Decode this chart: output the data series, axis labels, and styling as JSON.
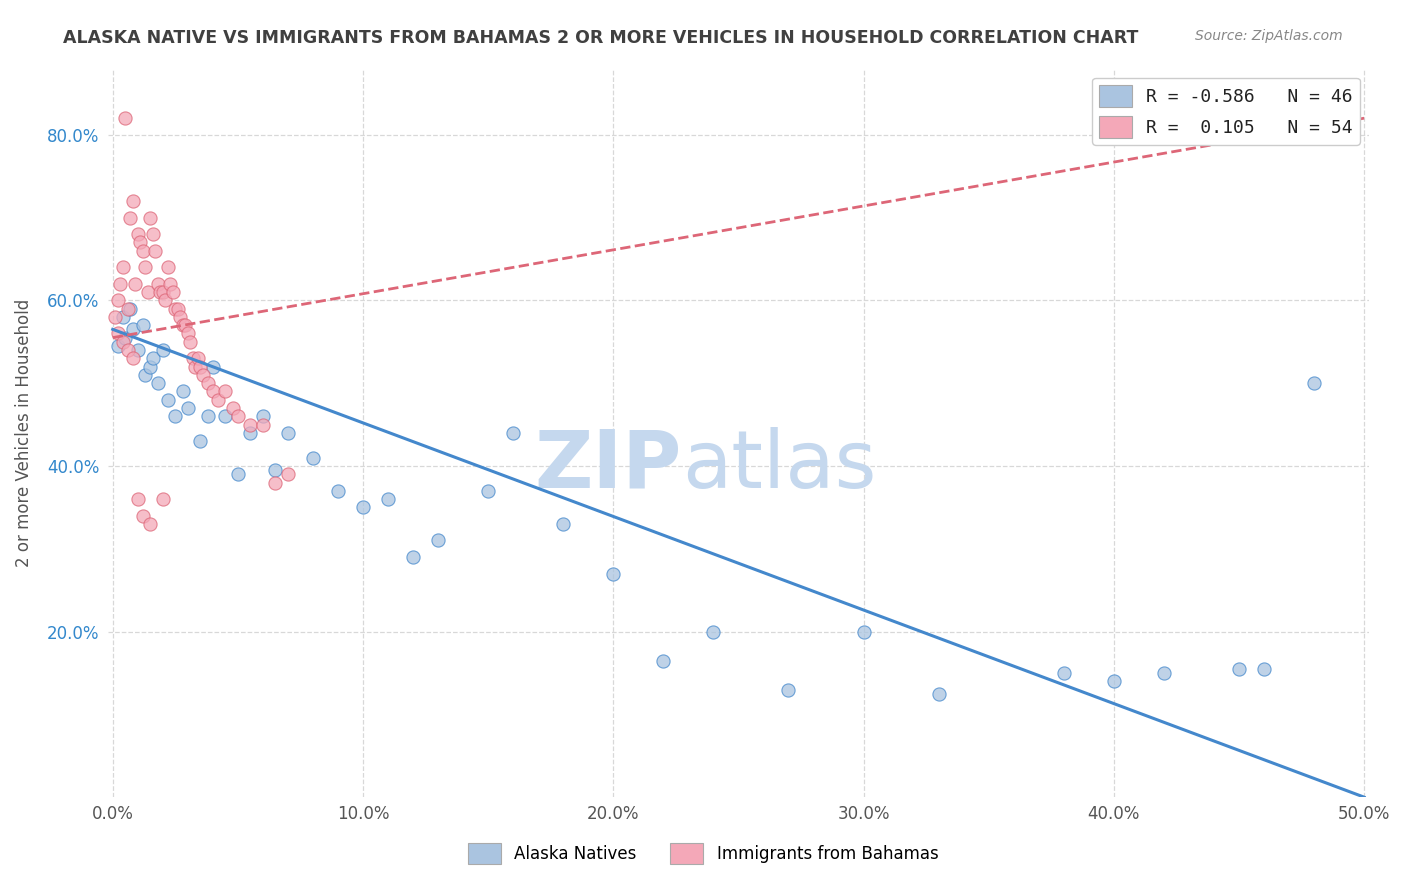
{
  "title": "ALASKA NATIVE VS IMMIGRANTS FROM BAHAMAS 2 OR MORE VEHICLES IN HOUSEHOLD CORRELATION CHART",
  "source": "Source: ZipAtlas.com",
  "xlabel": "",
  "ylabel": "2 or more Vehicles in Household",
  "xlim": [
    -0.002,
    0.502
  ],
  "ylim": [
    0.0,
    0.88
  ],
  "xtick_labels": [
    "0.0%",
    "10.0%",
    "20.0%",
    "30.0%",
    "40.0%",
    "50.0%"
  ],
  "xtick_values": [
    0.0,
    0.1,
    0.2,
    0.3,
    0.4,
    0.5
  ],
  "ytick_labels": [
    "20.0%",
    "40.0%",
    "60.0%",
    "80.0%"
  ],
  "ytick_values": [
    0.2,
    0.4,
    0.6,
    0.8
  ],
  "background_color": "#ffffff",
  "plot_bg_color": "#ffffff",
  "grid_color": "#d8d8d8",
  "title_color": "#404040",
  "source_color": "#888888",
  "r1": -0.586,
  "n1": 46,
  "r2": 0.105,
  "n2": 54,
  "color1": "#aac4e0",
  "color2": "#f4a8b8",
  "trendline1_color": "#4488cc",
  "trendline2_color": "#dd6677",
  "watermark_zip": "ZIP",
  "watermark_atlas": "atlas",
  "watermark_color": "#c5d8ee",
  "scatter1_x": [
    0.002,
    0.004,
    0.005,
    0.007,
    0.008,
    0.01,
    0.012,
    0.013,
    0.015,
    0.016,
    0.018,
    0.02,
    0.022,
    0.025,
    0.028,
    0.03,
    0.035,
    0.038,
    0.04,
    0.045,
    0.05,
    0.055,
    0.06,
    0.065,
    0.07,
    0.08,
    0.09,
    0.1,
    0.11,
    0.12,
    0.13,
    0.15,
    0.16,
    0.18,
    0.2,
    0.22,
    0.24,
    0.27,
    0.3,
    0.33,
    0.38,
    0.4,
    0.42,
    0.45,
    0.46,
    0.48
  ],
  "scatter1_y": [
    0.545,
    0.58,
    0.555,
    0.59,
    0.565,
    0.54,
    0.57,
    0.51,
    0.52,
    0.53,
    0.5,
    0.54,
    0.48,
    0.46,
    0.49,
    0.47,
    0.43,
    0.46,
    0.52,
    0.46,
    0.39,
    0.44,
    0.46,
    0.395,
    0.44,
    0.41,
    0.37,
    0.35,
    0.36,
    0.29,
    0.31,
    0.37,
    0.44,
    0.33,
    0.27,
    0.165,
    0.2,
    0.13,
    0.2,
    0.125,
    0.15,
    0.14,
    0.15,
    0.155,
    0.155,
    0.5
  ],
  "scatter2_x": [
    0.001,
    0.002,
    0.003,
    0.004,
    0.005,
    0.006,
    0.007,
    0.008,
    0.009,
    0.01,
    0.011,
    0.012,
    0.013,
    0.014,
    0.015,
    0.016,
    0.017,
    0.018,
    0.019,
    0.02,
    0.021,
    0.022,
    0.023,
    0.024,
    0.025,
    0.026,
    0.027,
    0.028,
    0.029,
    0.03,
    0.031,
    0.032,
    0.033,
    0.034,
    0.035,
    0.036,
    0.038,
    0.04,
    0.042,
    0.045,
    0.048,
    0.05,
    0.055,
    0.06,
    0.065,
    0.07,
    0.002,
    0.004,
    0.006,
    0.008,
    0.01,
    0.012,
    0.015,
    0.02
  ],
  "scatter2_y": [
    0.58,
    0.6,
    0.62,
    0.64,
    0.82,
    0.59,
    0.7,
    0.72,
    0.62,
    0.68,
    0.67,
    0.66,
    0.64,
    0.61,
    0.7,
    0.68,
    0.66,
    0.62,
    0.61,
    0.61,
    0.6,
    0.64,
    0.62,
    0.61,
    0.59,
    0.59,
    0.58,
    0.57,
    0.57,
    0.56,
    0.55,
    0.53,
    0.52,
    0.53,
    0.52,
    0.51,
    0.5,
    0.49,
    0.48,
    0.49,
    0.47,
    0.46,
    0.45,
    0.45,
    0.38,
    0.39,
    0.56,
    0.55,
    0.54,
    0.53,
    0.36,
    0.34,
    0.33,
    0.36
  ]
}
